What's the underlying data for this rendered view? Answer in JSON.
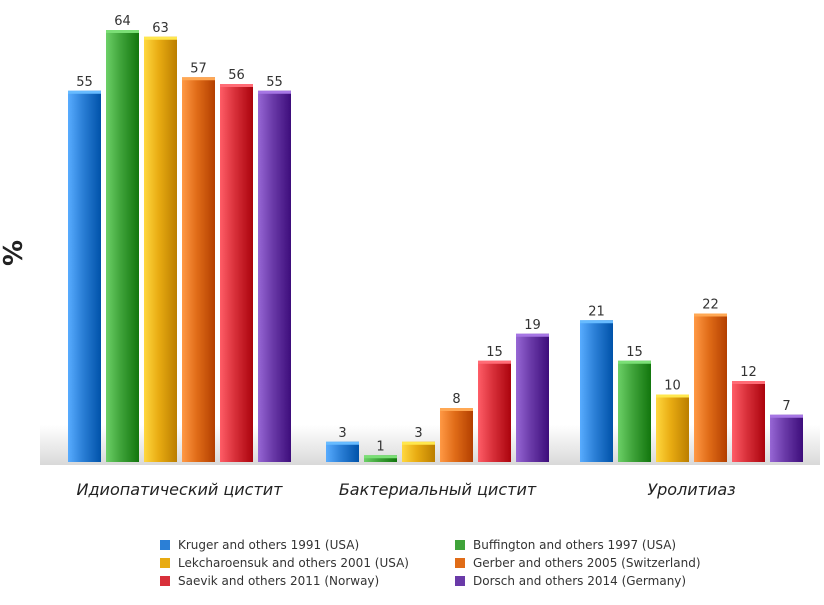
{
  "chart_data": {
    "type": "bar",
    "ylabel": "%",
    "categories": [
      "Идиопатический цистит",
      "Бактериальный цистит",
      "Уролитиаз"
    ],
    "series": [
      {
        "name": "Kruger and others 1991 (USA)",
        "color": "#2b7fd6",
        "values": [
          55,
          3,
          21
        ]
      },
      {
        "name": "Buffington and others 1997 (USA)",
        "color": "#3fa33a",
        "values": [
          64,
          1,
          15
        ]
      },
      {
        "name": "Lekcharoensuk and others 2001 (USA)",
        "color": "#e8ab12",
        "values": [
          63,
          3,
          10
        ]
      },
      {
        "name": "Gerber and others 2005 (Switzerland)",
        "color": "#e06c18",
        "values": [
          57,
          8,
          22
        ]
      },
      {
        "name": "Saevik and others 2011 (Norway)",
        "color": "#d8303a",
        "values": [
          56,
          15,
          12
        ]
      },
      {
        "name": "Dorsch and others 2014 (Germany)",
        "color": "#6a3aa8",
        "values": [
          55,
          19,
          7
        ]
      }
    ],
    "ylim": [
      0,
      64
    ],
    "legend_position": "bottom",
    "grid": false
  }
}
